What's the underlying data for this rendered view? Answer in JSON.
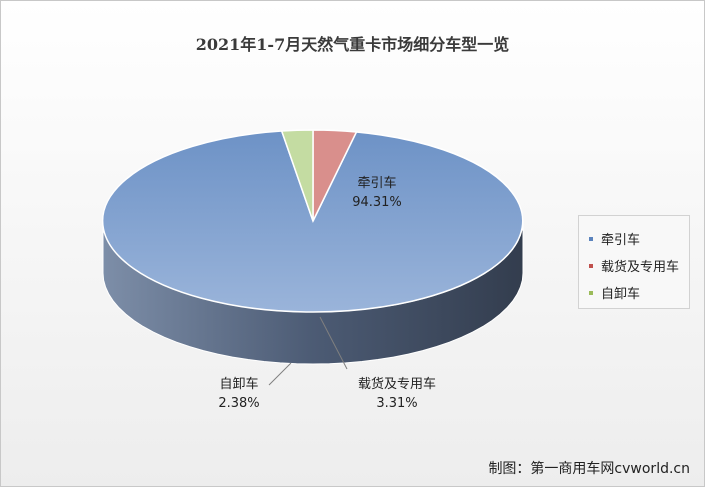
{
  "chart_data": {
    "type": "pie",
    "title": "2021年1-7月天然气重卡市场细分车型一览",
    "categories": [
      "牵引车",
      "载货及专用车",
      "自卸车"
    ],
    "values": [
      94.31,
      3.31,
      2.38
    ],
    "value_labels": [
      "94.31%",
      "3.31%",
      "2.38%"
    ],
    "colors": [
      "#5b83bd",
      "#c0504d",
      "#9bbb59"
    ],
    "legend_position": "right",
    "style": "3d"
  },
  "legend": [
    "牵引车",
    "载货及专用车",
    "自卸车"
  ],
  "credit": "制图：第一商用车网cvworld.cn"
}
